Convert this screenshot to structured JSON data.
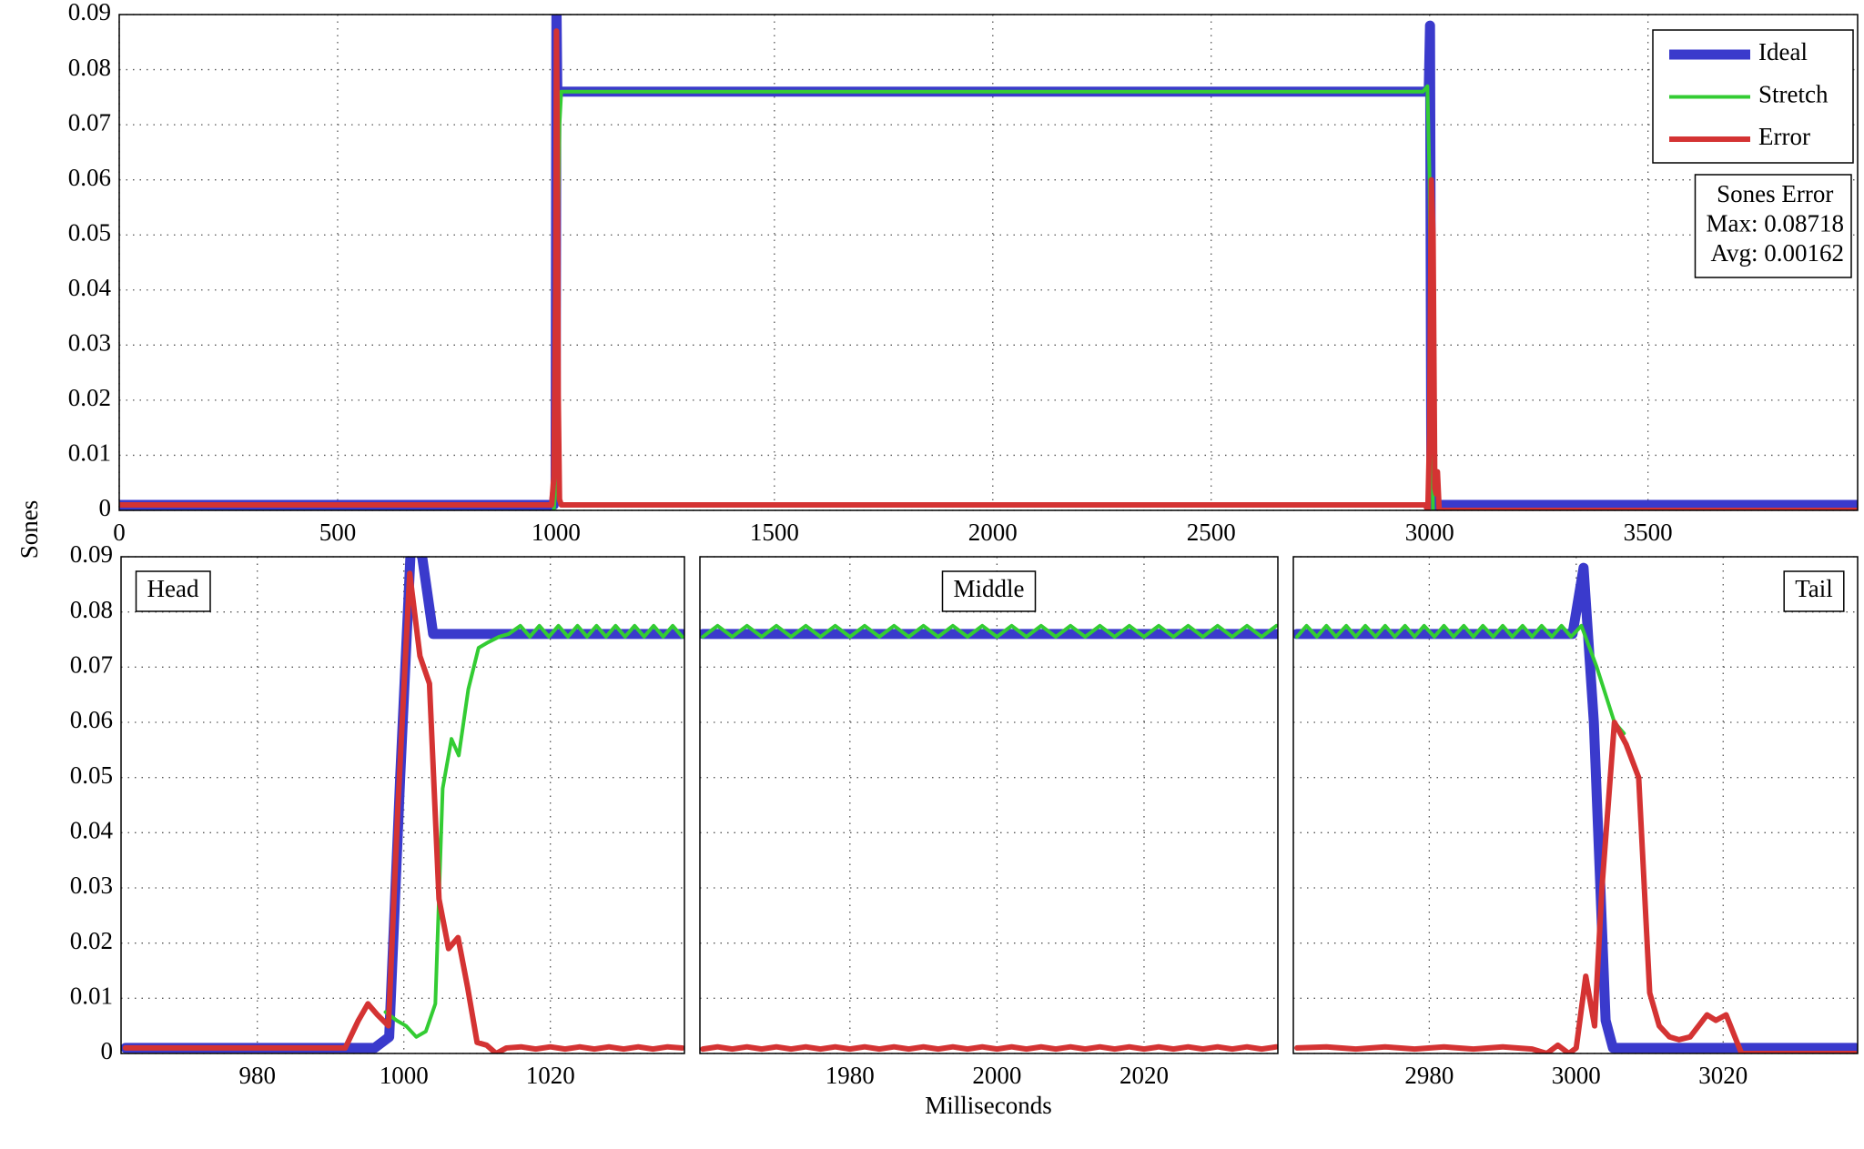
{
  "figure": {
    "xlabel": "Milliseconds",
    "ylabel": "Sones"
  },
  "chart_data": [
    {
      "type": "line",
      "xlim": [
        0,
        3980
      ],
      "ylim": [
        0,
        0.09
      ],
      "xticks": [
        0,
        500,
        1000,
        1500,
        2000,
        2500,
        3000,
        3500
      ],
      "yticks": [
        0,
        0.01,
        0.02,
        0.03,
        0.04,
        0.05,
        0.06,
        0.07,
        0.08,
        0.09
      ],
      "grid": true,
      "legend": "upper right",
      "annotation": [
        "Sones Error",
        "Max: 0.08718",
        "Avg: 0.00162"
      ],
      "series": [
        {
          "name": "Ideal",
          "color": "#3a3acc",
          "x": [
            0,
            995,
            999,
            1001,
            1003,
            1010,
            2990,
            2998,
            3001,
            3004,
            3007,
            3980
          ],
          "values": [
            0.001,
            0.001,
            0.004,
            0.093,
            0.076,
            0.076,
            0.076,
            0.076,
            0.088,
            0.006,
            0.001,
            0.001
          ]
        },
        {
          "name": "Stretch",
          "color": "#33cc33",
          "x": [
            995,
            1000,
            1003,
            1005,
            1008,
            1012,
            1020,
            2985,
            2995,
            3000,
            3003,
            3008
          ],
          "values": [
            0,
            0.005,
            0.003,
            0.05,
            0.07,
            0.076,
            0.076,
            0.076,
            0.077,
            0.06,
            0.02,
            0
          ]
        },
        {
          "name": "Error",
          "color": "#d43333",
          "x": [
            0,
            990,
            995,
            999,
            1001,
            1003,
            1005,
            1008,
            1012,
            2990,
            2996,
            3000,
            3004,
            3008,
            3012,
            3015,
            3018,
            3022,
            3980
          ],
          "values": [
            0.001,
            0.001,
            0.006,
            0.04,
            0.087,
            0.067,
            0.021,
            0.002,
            0.001,
            0.001,
            0,
            0.014,
            0.06,
            0.05,
            0.004,
            0.003,
            0.007,
            0,
            0
          ]
        }
      ]
    },
    {
      "type": "line",
      "label": "Head",
      "xlim": [
        961.4,
        1038.3
      ],
      "ylim": [
        0,
        0.09
      ],
      "xticks": [
        980,
        1000,
        1020
      ],
      "yticks": [
        0,
        0.01,
        0.02,
        0.03,
        0.04,
        0.05,
        0.06,
        0.07,
        0.08,
        0.09
      ],
      "grid": true,
      "series": [
        {
          "name": "Ideal",
          "color": "#3a3acc",
          "x": [
            962,
            996,
            998,
            999.5,
            1001,
            1002.5,
            1004,
            1038
          ],
          "values": [
            0.001,
            0.001,
            0.003,
            0.05,
            0.093,
            0.09,
            0.076,
            0.076
          ]
        },
        {
          "name": "Stretch",
          "color": "#33cc33",
          "x": [
            997.5,
            999,
            1000.3,
            1001.7,
            1003,
            1004.3,
            1005.3,
            1006.5,
            1007.5,
            1008.8,
            1010.2,
            1011.5,
            1013,
            1014.3,
            1015.9,
            1017.2,
            1018.5,
            1019.8,
            1021.1,
            1022.4,
            1023.7,
            1025,
            1026.3,
            1027.6,
            1028.9,
            1030.2,
            1031.5,
            1032.8,
            1034.1,
            1035.4,
            1036.7,
            1038
          ],
          "values": [
            0.0075,
            0.006,
            0.005,
            0.003,
            0.004,
            0.009,
            0.048,
            0.057,
            0.054,
            0.066,
            0.0735,
            0.0745,
            0.0755,
            0.076,
            0.0775,
            0.0755,
            0.0775,
            0.0755,
            0.0775,
            0.0755,
            0.0775,
            0.0755,
            0.0775,
            0.0755,
            0.0775,
            0.0755,
            0.0775,
            0.0755,
            0.0775,
            0.0755,
            0.0775,
            0.0755
          ]
        },
        {
          "name": "Error",
          "color": "#d43333",
          "x": [
            962,
            992,
            993.8,
            995.1,
            996.4,
            997.9,
            999.2,
            1000.8,
            1002.2,
            1003.5,
            1004.8,
            1006.1,
            1007.4,
            1008.7,
            1010,
            1011.3,
            1012.6,
            1014,
            1016,
            1018,
            1020,
            1022,
            1024,
            1026,
            1028,
            1030,
            1032,
            1034,
            1036,
            1038
          ],
          "values": [
            0.001,
            0.001,
            0.006,
            0.009,
            0.007,
            0.005,
            0.045,
            0.087,
            0.072,
            0.067,
            0.028,
            0.019,
            0.021,
            0.012,
            0.002,
            0.0015,
            0,
            0.001,
            0.0012,
            0.0008,
            0.0012,
            0.0008,
            0.0012,
            0.0008,
            0.0012,
            0.0008,
            0.0012,
            0.0008,
            0.0012,
            0.001
          ]
        }
      ]
    },
    {
      "type": "line",
      "label": "Middle",
      "xlim": [
        1959.6,
        2038.2
      ],
      "ylim": [
        0,
        0.09
      ],
      "xticks": [
        1980,
        2000,
        2020
      ],
      "yticks": [
        0,
        0.01,
        0.02,
        0.03,
        0.04,
        0.05,
        0.06,
        0.07,
        0.08,
        0.09
      ],
      "grid": true,
      "series": [
        {
          "name": "Ideal",
          "color": "#3a3acc",
          "x": [
            1960,
            2038
          ],
          "values": [
            0.076,
            0.076
          ]
        },
        {
          "name": "Stretch",
          "color": "#33cc33",
          "x": [
            1960,
            1962,
            1964,
            1966,
            1968,
            1970,
            1972,
            1974,
            1976,
            1978,
            1980,
            1982,
            1984,
            1986,
            1988,
            1990,
            1992,
            1994,
            1996,
            1998,
            2000,
            2002,
            2004,
            2006,
            2008,
            2010,
            2012,
            2014,
            2016,
            2018,
            2020,
            2022,
            2024,
            2026,
            2028,
            2030,
            2032,
            2034,
            2036,
            2038
          ],
          "values": [
            0.0755,
            0.0775,
            0.0755,
            0.0775,
            0.0755,
            0.0775,
            0.0755,
            0.0775,
            0.0755,
            0.0775,
            0.0755,
            0.0775,
            0.0755,
            0.0775,
            0.0755,
            0.0775,
            0.0755,
            0.0775,
            0.0755,
            0.0775,
            0.0755,
            0.0775,
            0.0755,
            0.0775,
            0.0755,
            0.0775,
            0.0755,
            0.0775,
            0.0755,
            0.0775,
            0.0755,
            0.0775,
            0.0755,
            0.0775,
            0.0755,
            0.0775,
            0.0755,
            0.0775,
            0.0755,
            0.0775
          ]
        },
        {
          "name": "Error",
          "color": "#d43333",
          "x": [
            1960,
            1962,
            1964,
            1966,
            1968,
            1970,
            1972,
            1974,
            1976,
            1978,
            1980,
            1982,
            1984,
            1986,
            1988,
            1990,
            1992,
            1994,
            1996,
            1998,
            2000,
            2002,
            2004,
            2006,
            2008,
            2010,
            2012,
            2014,
            2016,
            2018,
            2020,
            2022,
            2024,
            2026,
            2028,
            2030,
            2032,
            2034,
            2036,
            2038
          ],
          "values": [
            0.0008,
            0.0012,
            0.0008,
            0.0012,
            0.0008,
            0.0012,
            0.0008,
            0.0012,
            0.0008,
            0.0012,
            0.0008,
            0.0012,
            0.0008,
            0.0012,
            0.0008,
            0.0012,
            0.0008,
            0.0012,
            0.0008,
            0.0012,
            0.0008,
            0.0012,
            0.0008,
            0.0012,
            0.0008,
            0.0012,
            0.0008,
            0.0012,
            0.0008,
            0.0012,
            0.0008,
            0.0012,
            0.0008,
            0.0012,
            0.0008,
            0.0012,
            0.0008,
            0.0012,
            0.0008,
            0.0012
          ]
        }
      ]
    },
    {
      "type": "line",
      "label": "Tail",
      "xlim": [
        2961.5,
        3038.3
      ],
      "ylim": [
        0,
        0.09
      ],
      "xticks": [
        2980,
        3000,
        3020
      ],
      "yticks": [
        0,
        0.01,
        0.02,
        0.03,
        0.04,
        0.05,
        0.06,
        0.07,
        0.08,
        0.09
      ],
      "grid": true,
      "series": [
        {
          "name": "Ideal",
          "color": "#3a3acc",
          "x": [
            2962,
            2999.5,
            3001,
            3002.4,
            3004,
            3005,
            3038
          ],
          "values": [
            0.076,
            0.076,
            0.088,
            0.06,
            0.006,
            0.001,
            0.001
          ]
        },
        {
          "name": "Stretch",
          "color": "#33cc33",
          "x": [
            2962,
            2963.3,
            2964.7,
            2966,
            2967.3,
            2968.7,
            2970,
            2971.3,
            2972.7,
            2974,
            2975.3,
            2976.7,
            2978,
            2979.3,
            2980.7,
            2982,
            2983.3,
            2984.7,
            2986,
            2987.3,
            2988.7,
            2990,
            2991.3,
            2992.7,
            2994,
            2995.3,
            2996.7,
            2998,
            2999.3,
            3000.7,
            3002.8,
            3005.2,
            3006.5
          ],
          "values": [
            0.0755,
            0.0775,
            0.0755,
            0.0775,
            0.0755,
            0.0775,
            0.0755,
            0.0775,
            0.0755,
            0.0775,
            0.0755,
            0.0775,
            0.0755,
            0.0775,
            0.0755,
            0.0775,
            0.0755,
            0.0775,
            0.0755,
            0.0775,
            0.0755,
            0.0775,
            0.0755,
            0.0775,
            0.0755,
            0.0775,
            0.0755,
            0.0775,
            0.0755,
            0.0775,
            0.07,
            0.06,
            0.058
          ]
        },
        {
          "name": "Error",
          "color": "#d43333",
          "x": [
            2962,
            2966,
            2970,
            2974,
            2978,
            2982,
            2986,
            2990,
            2994,
            2996,
            2997.5,
            2999,
            3000,
            3001.3,
            3002.5,
            3003.5,
            3005.2,
            3006.8,
            3008.5,
            3010,
            3011.3,
            3012.7,
            3014,
            3015.5,
            3017.8,
            3019,
            3020.4,
            3022.5,
            3038
          ],
          "values": [
            0.001,
            0.0012,
            0.0008,
            0.0012,
            0.0008,
            0.0012,
            0.0008,
            0.0012,
            0.0008,
            0,
            0.0015,
            0,
            0.001,
            0.014,
            0.005,
            0.03,
            0.06,
            0.056,
            0.05,
            0.011,
            0.005,
            0.003,
            0.0025,
            0.003,
            0.007,
            0.006,
            0.007,
            0,
            0
          ]
        }
      ]
    }
  ]
}
